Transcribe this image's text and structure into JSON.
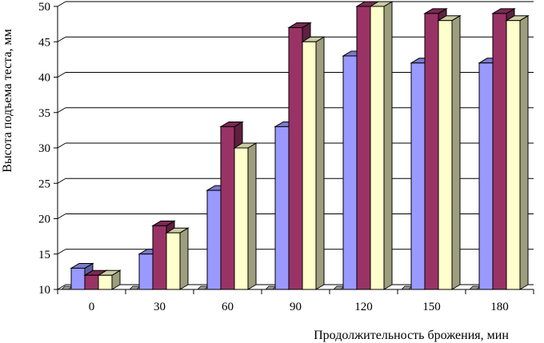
{
  "chart_data": {
    "type": "bar",
    "categories": [
      "0",
      "30",
      "60",
      "90",
      "120",
      "150",
      "180"
    ],
    "series": [
      {
        "color": "#9999ff",
        "values": [
          13,
          15,
          24,
          33,
          43,
          42,
          42
        ]
      },
      {
        "color": "#993366",
        "values": [
          12,
          19,
          33,
          47,
          50,
          49,
          49
        ]
      },
      {
        "color": "#ffffcc",
        "values": [
          12,
          18,
          30,
          45,
          50,
          48,
          48
        ]
      }
    ],
    "yticks": [
      "10",
      "15",
      "20",
      "25",
      "30",
      "35",
      "40",
      "45",
      "50"
    ],
    "ylim": [
      10,
      50
    ],
    "xlabel": "Продолжительность брожения, мин",
    "ylabel": "Высота подъема теста, мм",
    "grid": true,
    "style": "3d-clustered-columns"
  }
}
